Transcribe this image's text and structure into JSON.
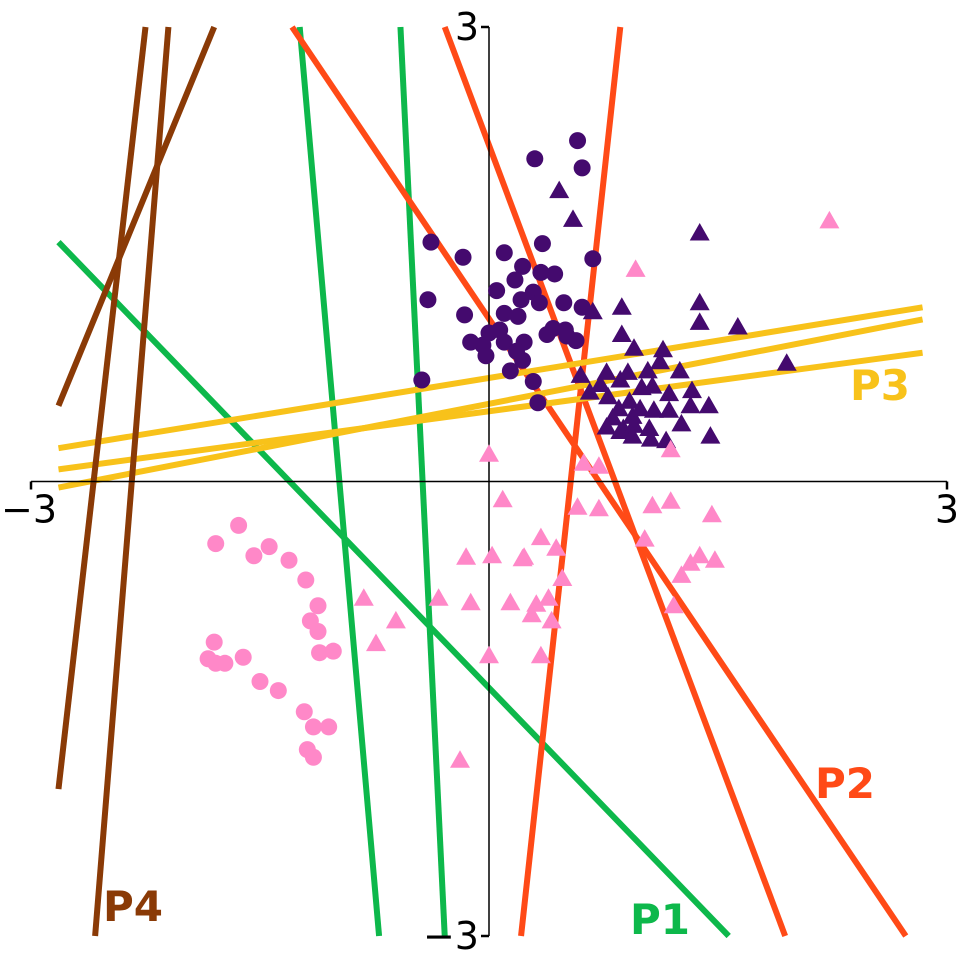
{
  "chart_data": {
    "type": "scatter",
    "title": "",
    "xlabel": "",
    "ylabel": "",
    "xlim": [
      -3,
      3
    ],
    "ylim": [
      -3,
      3
    ],
    "xticks": [
      "−3",
      "3"
    ],
    "yticks": [
      "−3",
      "3"
    ],
    "grid": false,
    "axes_style": "centered spines",
    "colors": {
      "class_dark": "#440a6e",
      "class_pink": "#ff88c8",
      "P1": "#0db84b",
      "P2": "#ff4a17",
      "P3": "#f8c21a",
      "P4": "#8a3a06"
    },
    "point_groups": [
      {
        "marker": "circle",
        "color": "#440a6e",
        "points": [
          [
            0.3,
            2.13
          ],
          [
            0.58,
            2.25
          ],
          [
            0.61,
            2.07
          ],
          [
            -0.38,
            1.58
          ],
          [
            -0.17,
            1.48
          ],
          [
            0.1,
            1.51
          ],
          [
            0.35,
            1.57
          ],
          [
            0.22,
            1.42
          ],
          [
            0.34,
            1.38
          ],
          [
            0.68,
            1.47
          ],
          [
            0.17,
            1.33
          ],
          [
            0.05,
            1.26
          ],
          [
            0.29,
            1.25
          ],
          [
            0.43,
            1.37
          ],
          [
            0.33,
            1.18
          ],
          [
            0.21,
            1.2
          ],
          [
            0.49,
            1.18
          ],
          [
            0.61,
            1.15
          ],
          [
            -0.4,
            1.2
          ],
          [
            0.1,
            1.11
          ],
          [
            -0.16,
            1.1
          ],
          [
            0.19,
            1.09
          ],
          [
            0.42,
            1.01
          ],
          [
            0.5,
            1.0
          ],
          [
            0.07,
            1.0
          ],
          [
            0.23,
            0.92
          ],
          [
            0.38,
            0.97
          ],
          [
            0.51,
            0.96
          ],
          [
            0.57,
            0.93
          ],
          [
            0.0,
            0.98
          ],
          [
            0.1,
            0.92
          ],
          [
            -0.12,
            0.92
          ],
          [
            -0.04,
            0.9
          ],
          [
            -0.02,
            0.83
          ],
          [
            0.18,
            0.86
          ],
          [
            0.22,
            0.8
          ],
          [
            0.14,
            0.73
          ],
          [
            -0.44,
            0.67
          ],
          [
            0.29,
            0.66
          ],
          [
            0.32,
            0.52
          ]
        ]
      },
      {
        "marker": "triangle",
        "color": "#440a6e",
        "points": [
          [
            0.46,
            1.92
          ],
          [
            0.55,
            1.73
          ],
          [
            1.38,
            1.64
          ],
          [
            0.68,
            1.12
          ],
          [
            0.87,
            1.15
          ],
          [
            1.38,
            1.18
          ],
          [
            1.38,
            1.05
          ],
          [
            1.63,
            1.02
          ],
          [
            0.87,
            0.97
          ],
          [
            0.95,
            0.88
          ],
          [
            1.14,
            0.87
          ],
          [
            0.6,
            0.7
          ],
          [
            0.73,
            0.64
          ],
          [
            0.77,
            0.72
          ],
          [
            0.86,
            0.67
          ],
          [
            0.91,
            0.72
          ],
          [
            1.04,
            0.73
          ],
          [
            1.12,
            0.79
          ],
          [
            1.25,
            0.73
          ],
          [
            1.95,
            0.78
          ],
          [
            0.66,
            0.59
          ],
          [
            0.78,
            0.56
          ],
          [
            0.85,
            0.48
          ],
          [
            0.92,
            0.53
          ],
          [
            1.0,
            0.62
          ],
          [
            1.07,
            0.63
          ],
          [
            1.18,
            0.58
          ],
          [
            1.33,
            0.6
          ],
          [
            0.81,
            0.42
          ],
          [
            0.88,
            0.35
          ],
          [
            0.94,
            0.43
          ],
          [
            0.99,
            0.48
          ],
          [
            1.08,
            0.47
          ],
          [
            1.18,
            0.47
          ],
          [
            1.32,
            0.5
          ],
          [
            1.44,
            0.5
          ],
          [
            0.77,
            0.36
          ],
          [
            0.86,
            0.33
          ],
          [
            0.95,
            0.37
          ],
          [
            1.05,
            0.35
          ],
          [
            1.26,
            0.38
          ],
          [
            0.94,
            0.3
          ],
          [
            1.06,
            0.28
          ],
          [
            1.16,
            0.27
          ],
          [
            1.45,
            0.3
          ]
        ]
      },
      {
        "marker": "circle",
        "color": "#ff88c8",
        "points": [
          [
            -1.64,
            -0.29
          ],
          [
            -1.44,
            -0.43
          ],
          [
            -1.31,
            -0.52
          ],
          [
            -1.54,
            -0.49
          ],
          [
            -1.79,
            -0.41
          ],
          [
            -1.2,
            -0.65
          ],
          [
            -1.12,
            -0.82
          ],
          [
            -1.17,
            -0.92
          ],
          [
            -1.12,
            -0.99
          ],
          [
            -1.02,
            -1.12
          ],
          [
            -1.11,
            -1.13
          ],
          [
            -1.8,
            -1.06
          ],
          [
            -1.84,
            -1.17
          ],
          [
            -1.73,
            -1.2
          ],
          [
            -1.61,
            -1.16
          ],
          [
            -1.79,
            -1.2
          ],
          [
            -1.5,
            -1.32
          ],
          [
            -1.38,
            -1.38
          ],
          [
            -1.21,
            -1.52
          ],
          [
            -1.05,
            -1.62
          ],
          [
            -1.15,
            -1.62
          ],
          [
            -1.19,
            -1.77
          ],
          [
            -1.15,
            -1.82
          ]
        ]
      },
      {
        "marker": "triangle",
        "color": "#ff88c8",
        "points": [
          [
            2.23,
            1.72
          ],
          [
            0.96,
            1.4
          ],
          [
            0,
            0.18
          ],
          [
            0.62,
            0.12
          ],
          [
            1.19,
            0.21
          ],
          [
            0.72,
            0.1
          ],
          [
            0.09,
            -0.12
          ],
          [
            1.19,
            -0.13
          ],
          [
            0.58,
            -0.17
          ],
          [
            0.72,
            -0.18
          ],
          [
            1.07,
            -0.16
          ],
          [
            1.46,
            -0.22
          ],
          [
            0.34,
            -0.37
          ],
          [
            0.44,
            -0.44
          ],
          [
            0.23,
            -0.5
          ],
          [
            0.02,
            -0.49
          ],
          [
            0.22,
            -0.51
          ],
          [
            1.32,
            -0.54
          ],
          [
            1.38,
            -0.49
          ],
          [
            1.48,
            -0.52
          ],
          [
            1.02,
            -0.38
          ],
          [
            1.26,
            -0.62
          ],
          [
            0.48,
            -0.64
          ],
          [
            -0.15,
            -0.5
          ],
          [
            -0.12,
            -0.8
          ],
          [
            -0.33,
            -0.77
          ],
          [
            -0.82,
            -0.77
          ],
          [
            0.39,
            -0.77
          ],
          [
            0.31,
            -0.81
          ],
          [
            1.21,
            -0.82
          ],
          [
            0.14,
            -0.8
          ],
          [
            0.28,
            -0.88
          ],
          [
            0.41,
            -0.92
          ],
          [
            -0.61,
            -0.92
          ],
          [
            -0.74,
            -1.07
          ],
          [
            0.0,
            -1.15
          ],
          [
            0.34,
            -1.15
          ],
          [
            -0.19,
            -1.84
          ]
        ]
      }
    ],
    "line_groups": [
      {
        "label": "P1",
        "color": "#0db84b",
        "label_position": "bottom",
        "lines": [
          [
            [
              -0.58,
              3.0
            ],
            [
              -0.29,
              -3.0
            ]
          ],
          [
            [
              -1.24,
              3.0
            ],
            [
              -0.72,
              -3.0
            ]
          ],
          [
            [
              -2.82,
              1.58
            ],
            [
              1.57,
              -3.0
            ]
          ]
        ]
      },
      {
        "label": "P2",
        "color": "#ff4a17",
        "label_position": "bottom-right",
        "lines": [
          [
            [
              0.86,
              3.0
            ],
            [
              0.21,
              -3.0
            ]
          ],
          [
            [
              -0.29,
              3.0
            ],
            [
              1.94,
              -3.0
            ]
          ],
          [
            [
              -1.29,
              3.0
            ],
            [
              2.73,
              -3.0
            ]
          ]
        ]
      },
      {
        "label": "P3",
        "color": "#f8c21a",
        "label_position": "right",
        "lines": [
          [
            [
              -2.82,
              0.22
            ],
            [
              2.84,
              1.15
            ]
          ],
          [
            [
              -2.82,
              0.08
            ],
            [
              2.84,
              0.85
            ]
          ],
          [
            [
              -2.82,
              -0.04
            ],
            [
              2.84,
              1.07
            ]
          ]
        ]
      },
      {
        "label": "P4",
        "color": "#8a3a06",
        "label_position": "bottom-left",
        "lines": [
          [
            [
              -2.82,
              0.5
            ],
            [
              -1.8,
              3.0
            ]
          ],
          [
            [
              -2.1,
              3.0
            ],
            [
              -2.58,
              -3.0
            ]
          ],
          [
            [
              -2.25,
              3.0
            ],
            [
              -2.82,
              -2.03
            ]
          ]
        ]
      }
    ]
  }
}
